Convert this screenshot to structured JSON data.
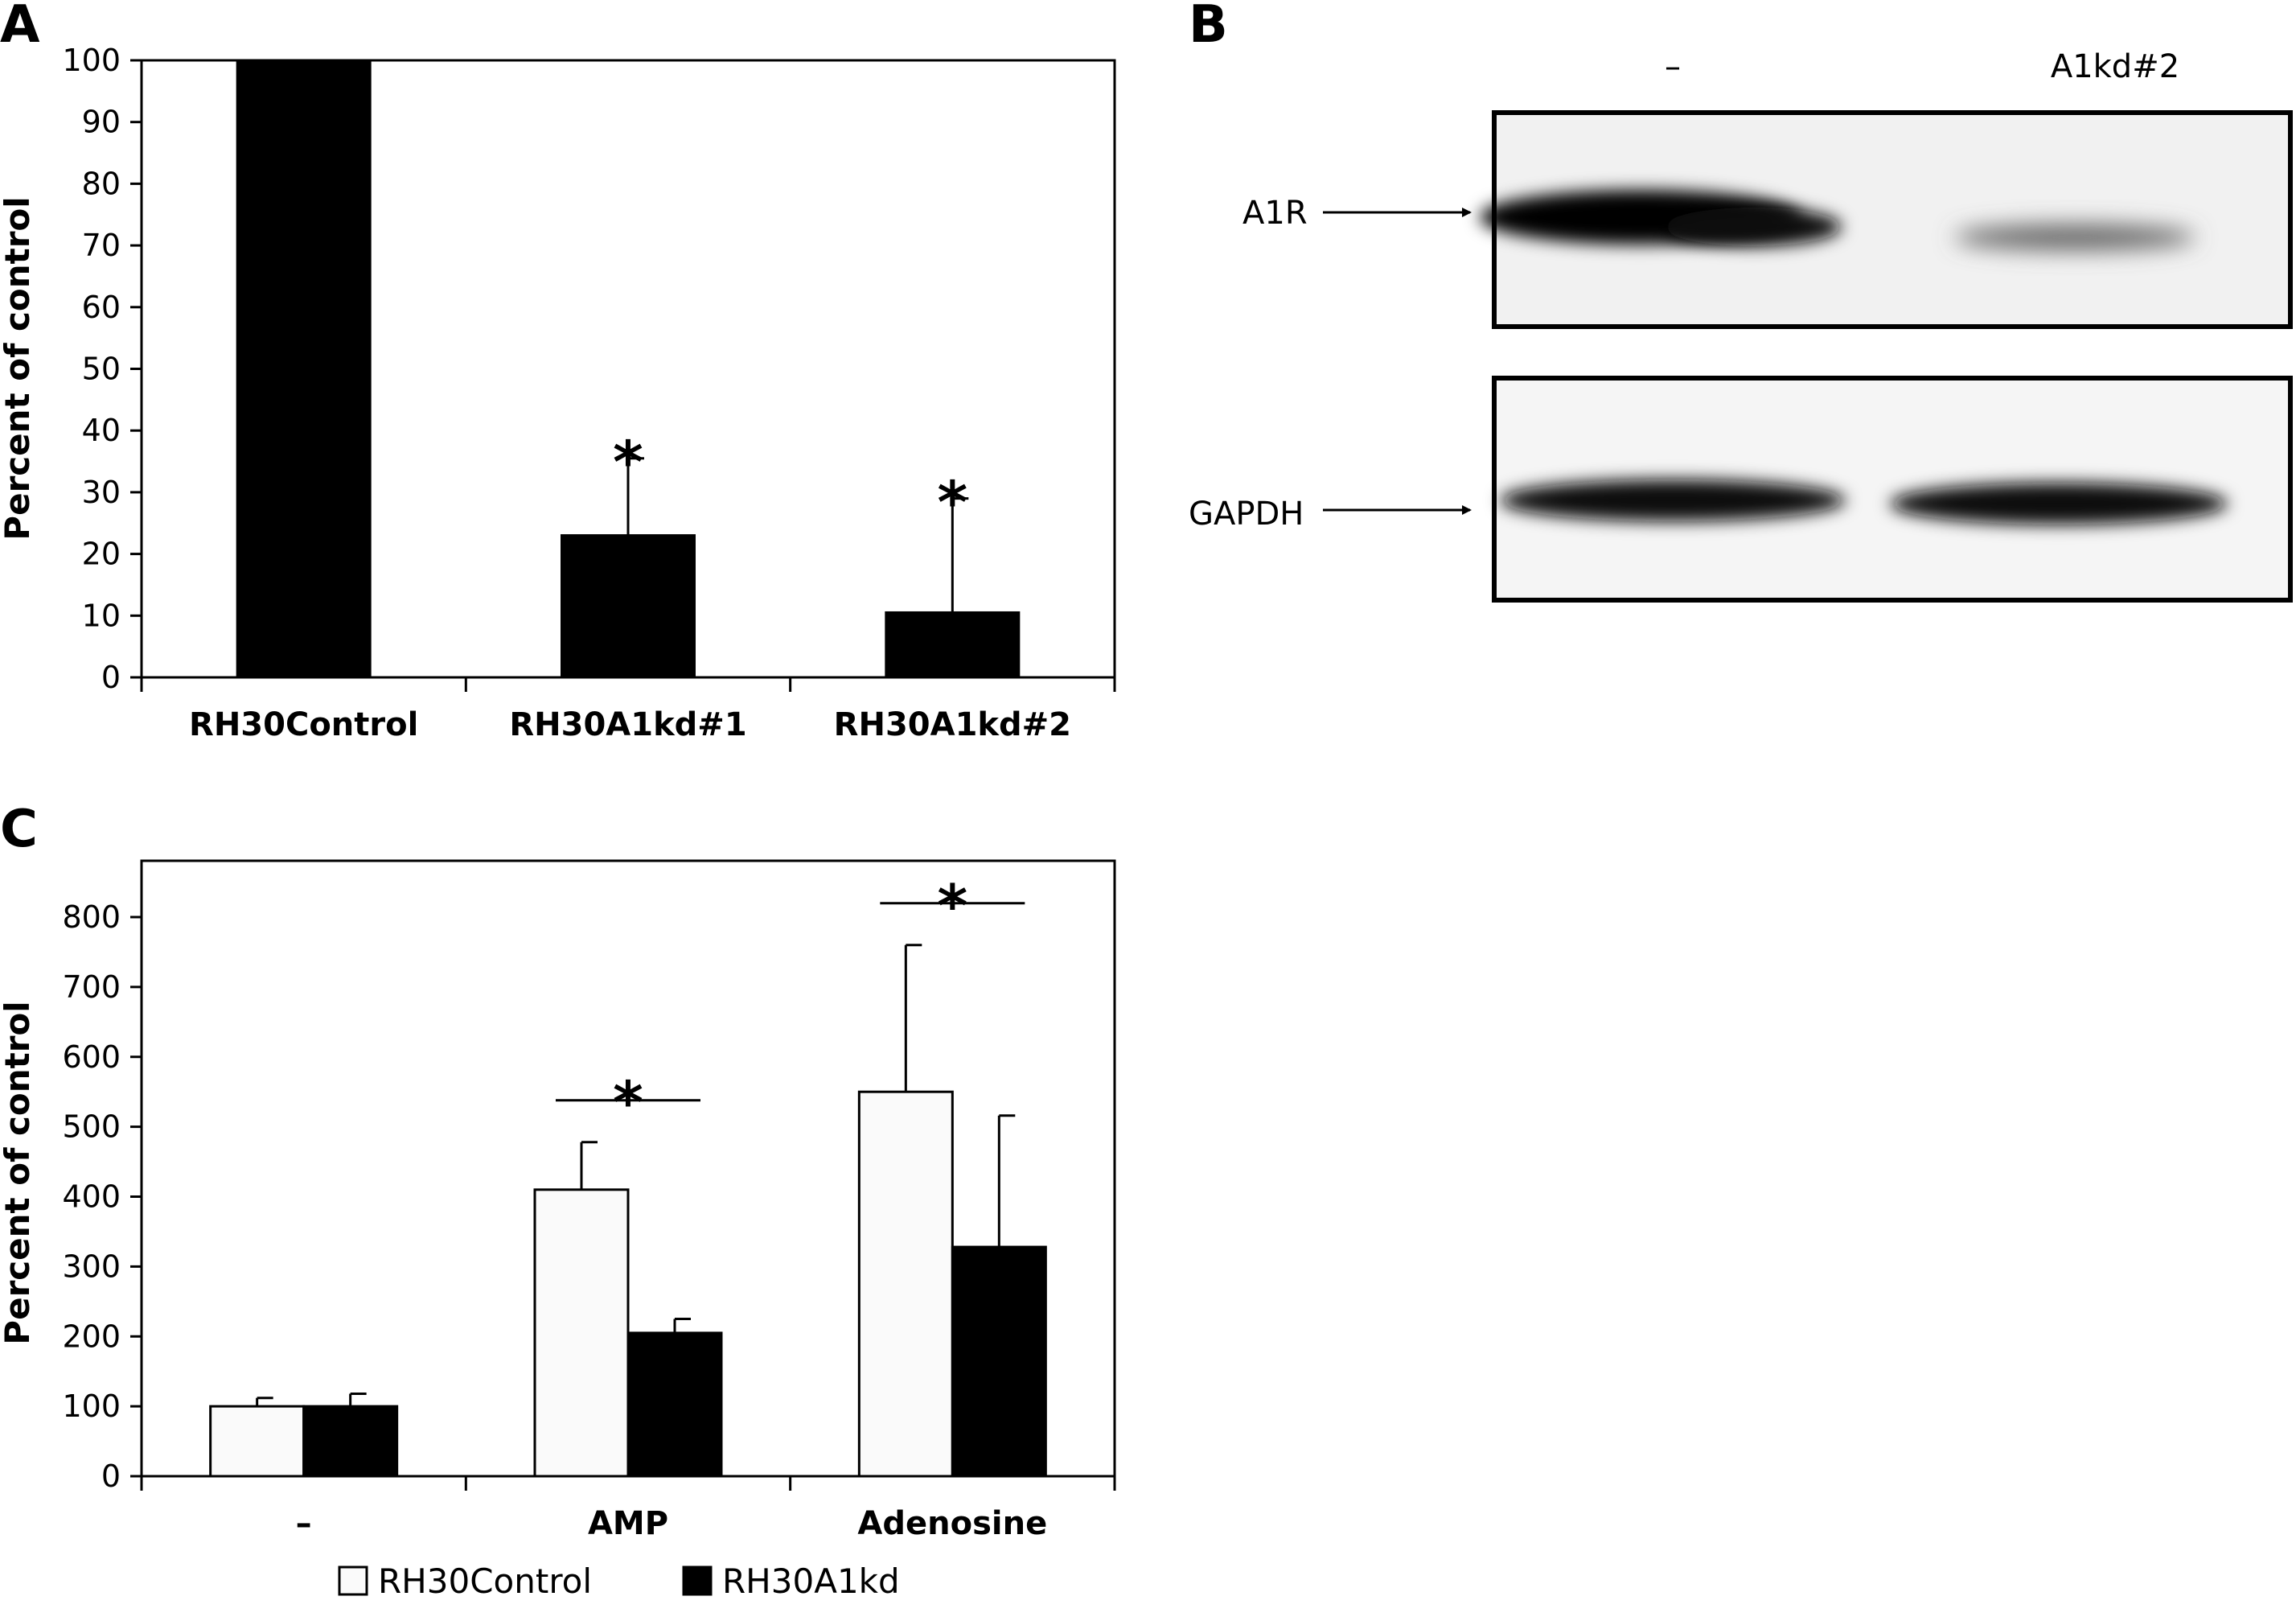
{
  "panels": {
    "a": "A",
    "b": "B",
    "c": "C"
  },
  "chart_data": [
    {
      "type": "bar",
      "panel": "A",
      "ylabel": "Percent of control",
      "ylim": [
        0,
        100
      ],
      "yticks": [
        0,
        10,
        20,
        30,
        40,
        50,
        60,
        70,
        80,
        90,
        100
      ],
      "categories": [
        "RH30Control",
        "RH30A1kd#1",
        "RH30A1kd#2"
      ],
      "values": [
        100,
        23,
        10.5
      ],
      "errors": [
        0,
        12.5,
        18.5
      ],
      "significance": [
        "",
        "*",
        "*"
      ],
      "bar_color": "#000000"
    },
    {
      "type": "bar",
      "panel": "C",
      "ylabel": "Percent of control",
      "ylim": [
        0,
        840
      ],
      "yticks": [
        0,
        100,
        200,
        300,
        400,
        500,
        600,
        700,
        800
      ],
      "categories": [
        "–",
        "AMP",
        "Adenosine"
      ],
      "series": [
        {
          "name": "RH30Control",
          "values": [
            100,
            410,
            550
          ],
          "errors": [
            12,
            68,
            210
          ],
          "color": "#fafafa"
        },
        {
          "name": "RH30A1kd",
          "values": [
            100,
            205,
            328
          ],
          "errors": [
            18,
            20,
            188
          ],
          "color": "#000000"
        }
      ],
      "significance": [
        "",
        "*",
        "*"
      ],
      "legend": "bottom"
    }
  ],
  "blot": {
    "lanes": [
      "–",
      "A1kd#2"
    ],
    "bands": [
      "A1R",
      "GAPDH"
    ]
  }
}
